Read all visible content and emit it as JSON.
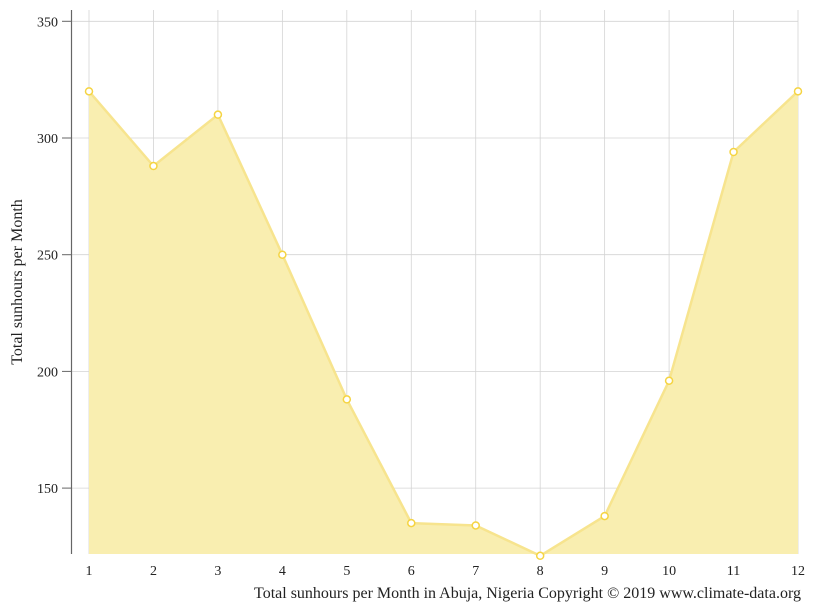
{
  "chart_data": {
    "type": "area",
    "title": "",
    "xlabel": "",
    "ylabel": "Total sunhours per Month",
    "caption": "Total sunhours per Month in Abuja, Nigeria Copyright © 2019 www.climate-data.org",
    "categories": [
      "1",
      "2",
      "3",
      "4",
      "5",
      "6",
      "7",
      "8",
      "9",
      "10",
      "11",
      "12"
    ],
    "values": [
      320,
      288,
      310,
      250,
      188,
      135,
      134,
      121,
      138,
      196,
      294,
      320
    ],
    "ylim": [
      121,
      355
    ],
    "yticks": [
      150,
      200,
      250,
      300,
      350
    ],
    "grid": true,
    "legend": "none",
    "colors": {
      "fill": "#f9eeb0",
      "line": "#f7e48e",
      "marker": "#f5d442",
      "grid": "#d4d4d4"
    }
  }
}
